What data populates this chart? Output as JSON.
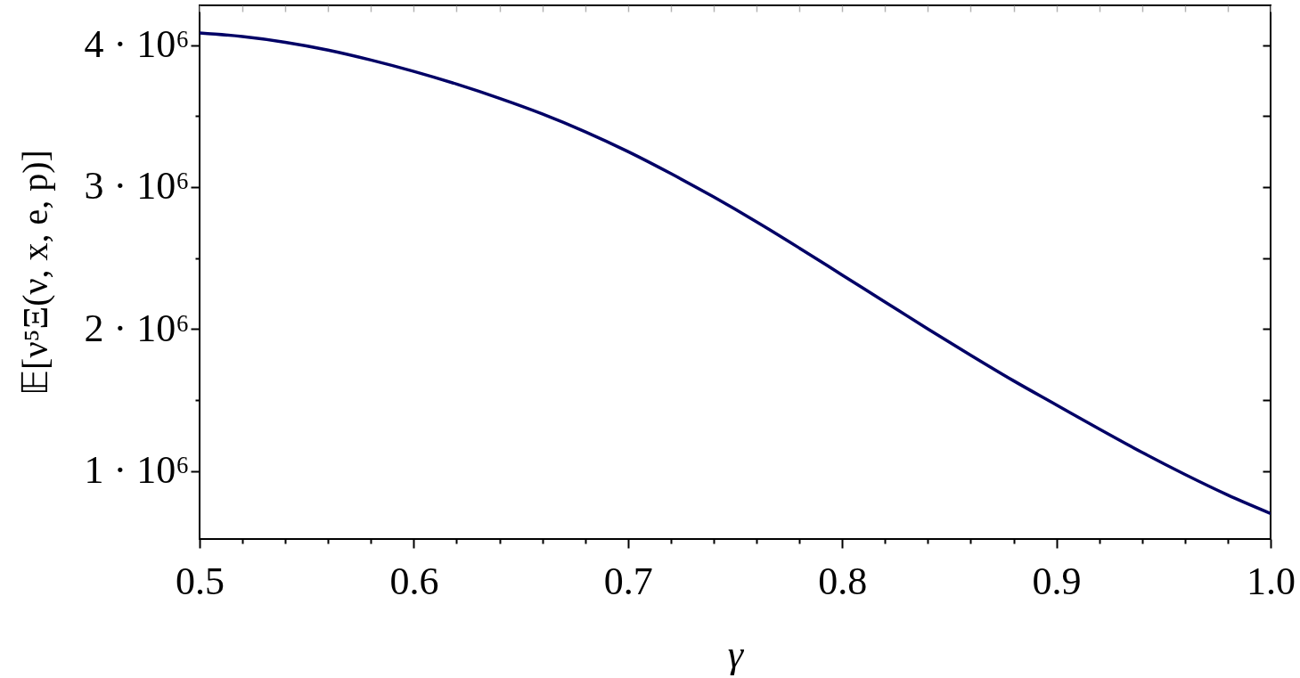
{
  "chart_data": {
    "type": "line",
    "xlabel": "γ",
    "ylabel": "𝔼[ν⁵Ξ(ν, x, e, p)]",
    "x": [
      0.5,
      0.52,
      0.54,
      0.56,
      0.58,
      0.6,
      0.62,
      0.64,
      0.66,
      0.68,
      0.7,
      0.72,
      0.74,
      0.76,
      0.78,
      0.8,
      0.82,
      0.84,
      0.86,
      0.88,
      0.9,
      0.92,
      0.94,
      0.96,
      0.98,
      1.0
    ],
    "series": [
      {
        "color": "#000066",
        "values": [
          4085000,
          4060000,
          4020000,
          3965000,
          3895000,
          3815000,
          3725000,
          3625000,
          3515000,
          3390000,
          3250000,
          3095000,
          2930000,
          2755000,
          2570000,
          2380000,
          2190000,
          2000000,
          1815000,
          1635000,
          1465000,
          1295000,
          1130000,
          975000,
          830000,
          700000
        ]
      }
    ],
    "xlim": [
      0.5,
      1.0
    ],
    "ylim": [
      520000,
      4280000
    ],
    "xticks": [
      0.5,
      {
        "value": 0.52,
        "label": null
      },
      {
        "value": 0.54,
        "label": null
      },
      {
        "value": 0.56,
        "label": null
      },
      {
        "value": 0.58,
        "label": null
      },
      0.6,
      {
        "value": 0.62,
        "label": null
      },
      {
        "value": 0.64,
        "label": null
      },
      {
        "value": 0.66,
        "label": null
      },
      {
        "value": 0.68,
        "label": null
      },
      0.7,
      {
        "value": 0.72,
        "label": null
      },
      {
        "value": 0.74,
        "label": null
      },
      {
        "value": 0.76,
        "label": null
      },
      {
        "value": 0.78,
        "label": null
      },
      0.8,
      {
        "value": 0.82,
        "label": null
      },
      {
        "value": 0.84,
        "label": null
      },
      {
        "value": 0.86,
        "label": null
      },
      {
        "value": 0.88,
        "label": null
      },
      0.9,
      {
        "value": 0.92,
        "label": null
      },
      {
        "value": 0.94,
        "label": null
      },
      {
        "value": 0.96,
        "label": null
      },
      {
        "value": 0.98,
        "label": null
      },
      {
        "value": 1.0,
        "label": "1.0"
      }
    ],
    "yticks": [
      {
        "value": 1000000,
        "label": "1 · 10⁶"
      },
      {
        "value": 1500000,
        "label": null
      },
      {
        "value": 2000000,
        "label": "2 · 10⁶"
      },
      {
        "value": 2500000,
        "label": null
      },
      {
        "value": 3000000,
        "label": "3 · 10⁶"
      },
      {
        "value": 3500000,
        "label": null
      },
      {
        "value": 4000000,
        "label": "4 · 10⁶"
      }
    ],
    "marker": "none",
    "line_style": "solid"
  }
}
